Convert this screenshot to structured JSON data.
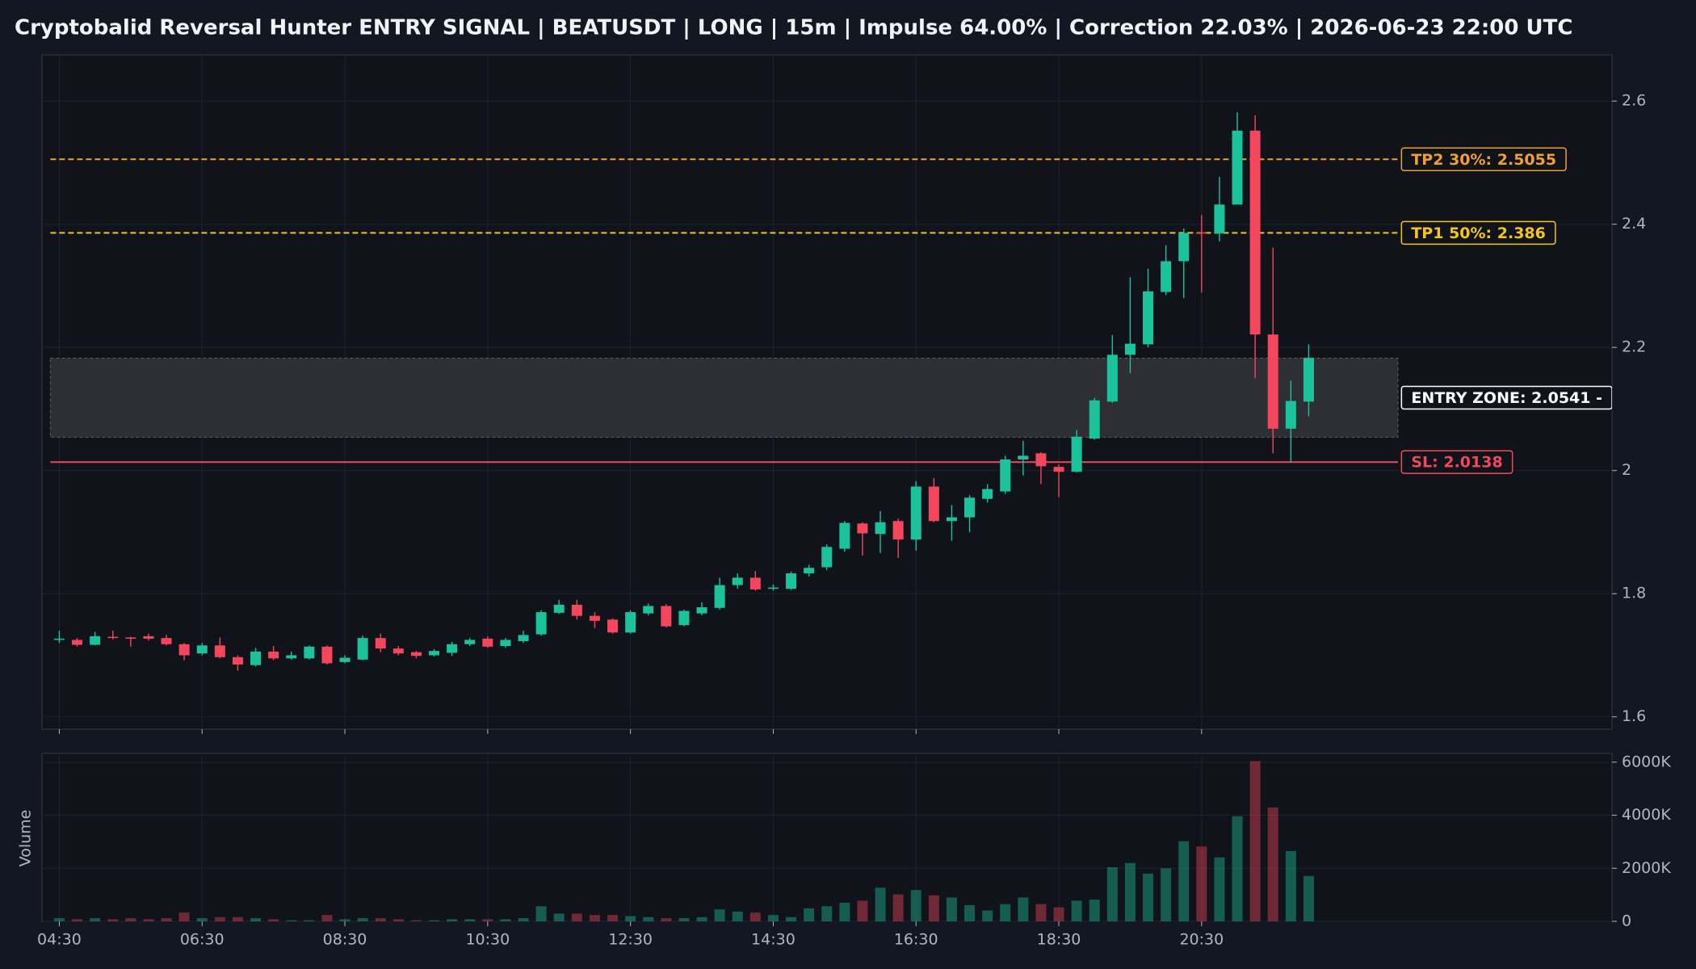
{
  "chart_data": {
    "type": "candlestick",
    "title": "Cryptobalid Reversal Hunter ENTRY SIGNAL | BEATUSDT | LONG | 15m | Impulse 64.00% | Correction 22.03% | 2026-06-23 22:00 UTC",
    "categories": [
      "04:30",
      null,
      null,
      null,
      null,
      null,
      null,
      null,
      "06:30",
      null,
      null,
      null,
      null,
      null,
      null,
      null,
      "08:30",
      null,
      null,
      null,
      null,
      null,
      null,
      null,
      "10:30",
      null,
      null,
      null,
      null,
      null,
      null,
      null,
      "12:30",
      null,
      null,
      null,
      null,
      null,
      null,
      null,
      "14:30",
      null,
      null,
      null,
      null,
      null,
      null,
      null,
      "16:30",
      null,
      null,
      null,
      null,
      null,
      null,
      null,
      "18:30",
      null,
      null,
      null,
      null,
      null,
      null,
      null,
      "20:30",
      null,
      null,
      null,
      null,
      null,
      null
    ],
    "open": [
      1.726,
      1.725,
      1.717,
      1.73,
      1.729,
      1.731,
      1.728,
      1.718,
      1.703,
      1.716,
      1.697,
      1.684,
      1.706,
      1.695,
      1.695,
      1.714,
      1.689,
      1.693,
      1.728,
      1.711,
      1.705,
      1.7,
      1.704,
      1.718,
      1.727,
      1.715,
      1.723,
      1.734,
      1.769,
      1.782,
      1.764,
      1.758,
      1.737,
      1.768,
      1.78,
      1.749,
      1.768,
      1.777,
      1.814,
      1.826,
      1.808,
      1.808,
      1.833,
      1.843,
      1.873,
      1.914,
      1.897,
      1.918,
      1.888,
      1.974,
      1.918,
      1.924,
      1.954,
      1.966,
      2.018,
      2.028,
      2.006,
      1.998,
      2.052,
      2.112,
      2.188,
      2.205,
      2.29,
      2.34,
      2.387,
      2.385,
      2.432,
      2.552,
      2.221,
      2.068,
      2.112
    ],
    "high": [
      1.74,
      1.728,
      1.738,
      1.74,
      1.73,
      1.735,
      1.733,
      1.72,
      1.72,
      1.729,
      1.7,
      1.712,
      1.715,
      1.706,
      1.716,
      1.716,
      1.7,
      1.732,
      1.735,
      1.715,
      1.707,
      1.71,
      1.722,
      1.728,
      1.731,
      1.728,
      1.74,
      1.773,
      1.79,
      1.79,
      1.77,
      1.76,
      1.773,
      1.784,
      1.783,
      1.774,
      1.786,
      1.826,
      1.833,
      1.837,
      1.815,
      1.836,
      1.847,
      1.88,
      1.918,
      1.916,
      1.934,
      1.922,
      1.983,
      1.988,
      1.944,
      1.96,
      1.978,
      2.024,
      2.048,
      2.03,
      2.01,
      2.066,
      2.118,
      2.22,
      2.314,
      2.328,
      2.366,
      2.393,
      2.415,
      2.477,
      2.582,
      2.577,
      2.362,
      2.146,
      2.205
    ],
    "low": [
      1.72,
      1.714,
      1.716,
      1.726,
      1.714,
      1.724,
      1.716,
      1.692,
      1.7,
      1.695,
      1.675,
      1.682,
      1.692,
      1.693,
      1.693,
      1.685,
      1.687,
      1.692,
      1.705,
      1.7,
      1.695,
      1.698,
      1.699,
      1.715,
      1.712,
      1.712,
      1.72,
      1.732,
      1.767,
      1.758,
      1.744,
      1.735,
      1.735,
      1.765,
      1.745,
      1.747,
      1.765,
      1.774,
      1.808,
      1.805,
      1.805,
      1.806,
      1.828,
      1.838,
      1.868,
      1.862,
      1.866,
      1.858,
      1.87,
      1.916,
      1.886,
      1.9,
      1.948,
      1.962,
      1.992,
      1.978,
      1.957,
      1.997,
      2.05,
      2.11,
      2.158,
      2.2,
      2.285,
      2.28,
      2.289,
      2.372,
      2.432,
      2.15,
      2.028,
      2.013,
      2.088
    ],
    "close": [
      1.727,
      1.717,
      1.731,
      1.729,
      1.727,
      1.727,
      1.718,
      1.7,
      1.716,
      1.697,
      1.685,
      1.706,
      1.695,
      1.7,
      1.714,
      1.687,
      1.696,
      1.728,
      1.711,
      1.703,
      1.699,
      1.707,
      1.718,
      1.725,
      1.714,
      1.725,
      1.733,
      1.77,
      1.782,
      1.764,
      1.756,
      1.737,
      1.77,
      1.78,
      1.747,
      1.772,
      1.778,
      1.814,
      1.826,
      1.807,
      1.81,
      1.833,
      1.842,
      1.876,
      1.915,
      1.898,
      1.916,
      1.888,
      1.974,
      1.918,
      1.924,
      1.956,
      1.97,
      2.018,
      2.024,
      2.007,
      1.998,
      2.055,
      2.114,
      2.188,
      2.206,
      2.291,
      2.34,
      2.386,
      2.385,
      2.432,
      2.552,
      2.221,
      2.068,
      2.113,
      2.183
    ],
    "up_color": "#1bc39c",
    "down_color": "#f6465d",
    "ylim": [
      1.58,
      2.675
    ],
    "yticks": [
      1.6,
      1.8,
      2,
      2.2,
      2.4,
      2.6
    ],
    "grid": true,
    "levels": [
      {
        "label": "TP2 30%: 2.5055",
        "value": 2.5055,
        "color": "#f0a030",
        "style": "dashed"
      },
      {
        "label": "TP1 50%: 2.386",
        "value": 2.386,
        "color": "#f5c518",
        "style": "dashed"
      },
      {
        "label": "SL: 2.0138",
        "value": 2.0138,
        "color": "#f0495c",
        "style": "solid"
      }
    ],
    "zone": {
      "label": "ENTRY ZONE: 2.0541 -",
      "low": 2.0541,
      "high": 2.1825
    },
    "volume": {
      "axis_label": "Volume",
      "values": [
        120000,
        80000,
        120000,
        80000,
        120000,
        80000,
        120000,
        330000,
        120000,
        160000,
        160000,
        120000,
        80000,
        40000,
        40000,
        240000,
        80000,
        120000,
        120000,
        80000,
        40000,
        40000,
        80000,
        80000,
        80000,
        80000,
        120000,
        570000,
        290000,
        290000,
        240000,
        240000,
        200000,
        160000,
        120000,
        120000,
        160000,
        450000,
        370000,
        330000,
        240000,
        160000,
        490000,
        570000,
        700000,
        780000,
        1270000,
        1020000,
        1180000,
        980000,
        900000,
        610000,
        410000,
        650000,
        900000,
        650000,
        530000,
        780000,
        820000,
        2040000,
        2200000,
        1800000,
        2000000,
        3020000,
        2820000,
        2410000,
        3960000,
        6040000,
        4290000,
        2650000,
        1710000
      ],
      "ylim": [
        0,
        6330000
      ],
      "yticks": [
        0,
        {
          "value": 2000000,
          "label": "2000K"
        },
        {
          "value": 4000000,
          "label": "4000K"
        },
        {
          "value": 6000000,
          "label": "6000K"
        }
      ]
    }
  }
}
